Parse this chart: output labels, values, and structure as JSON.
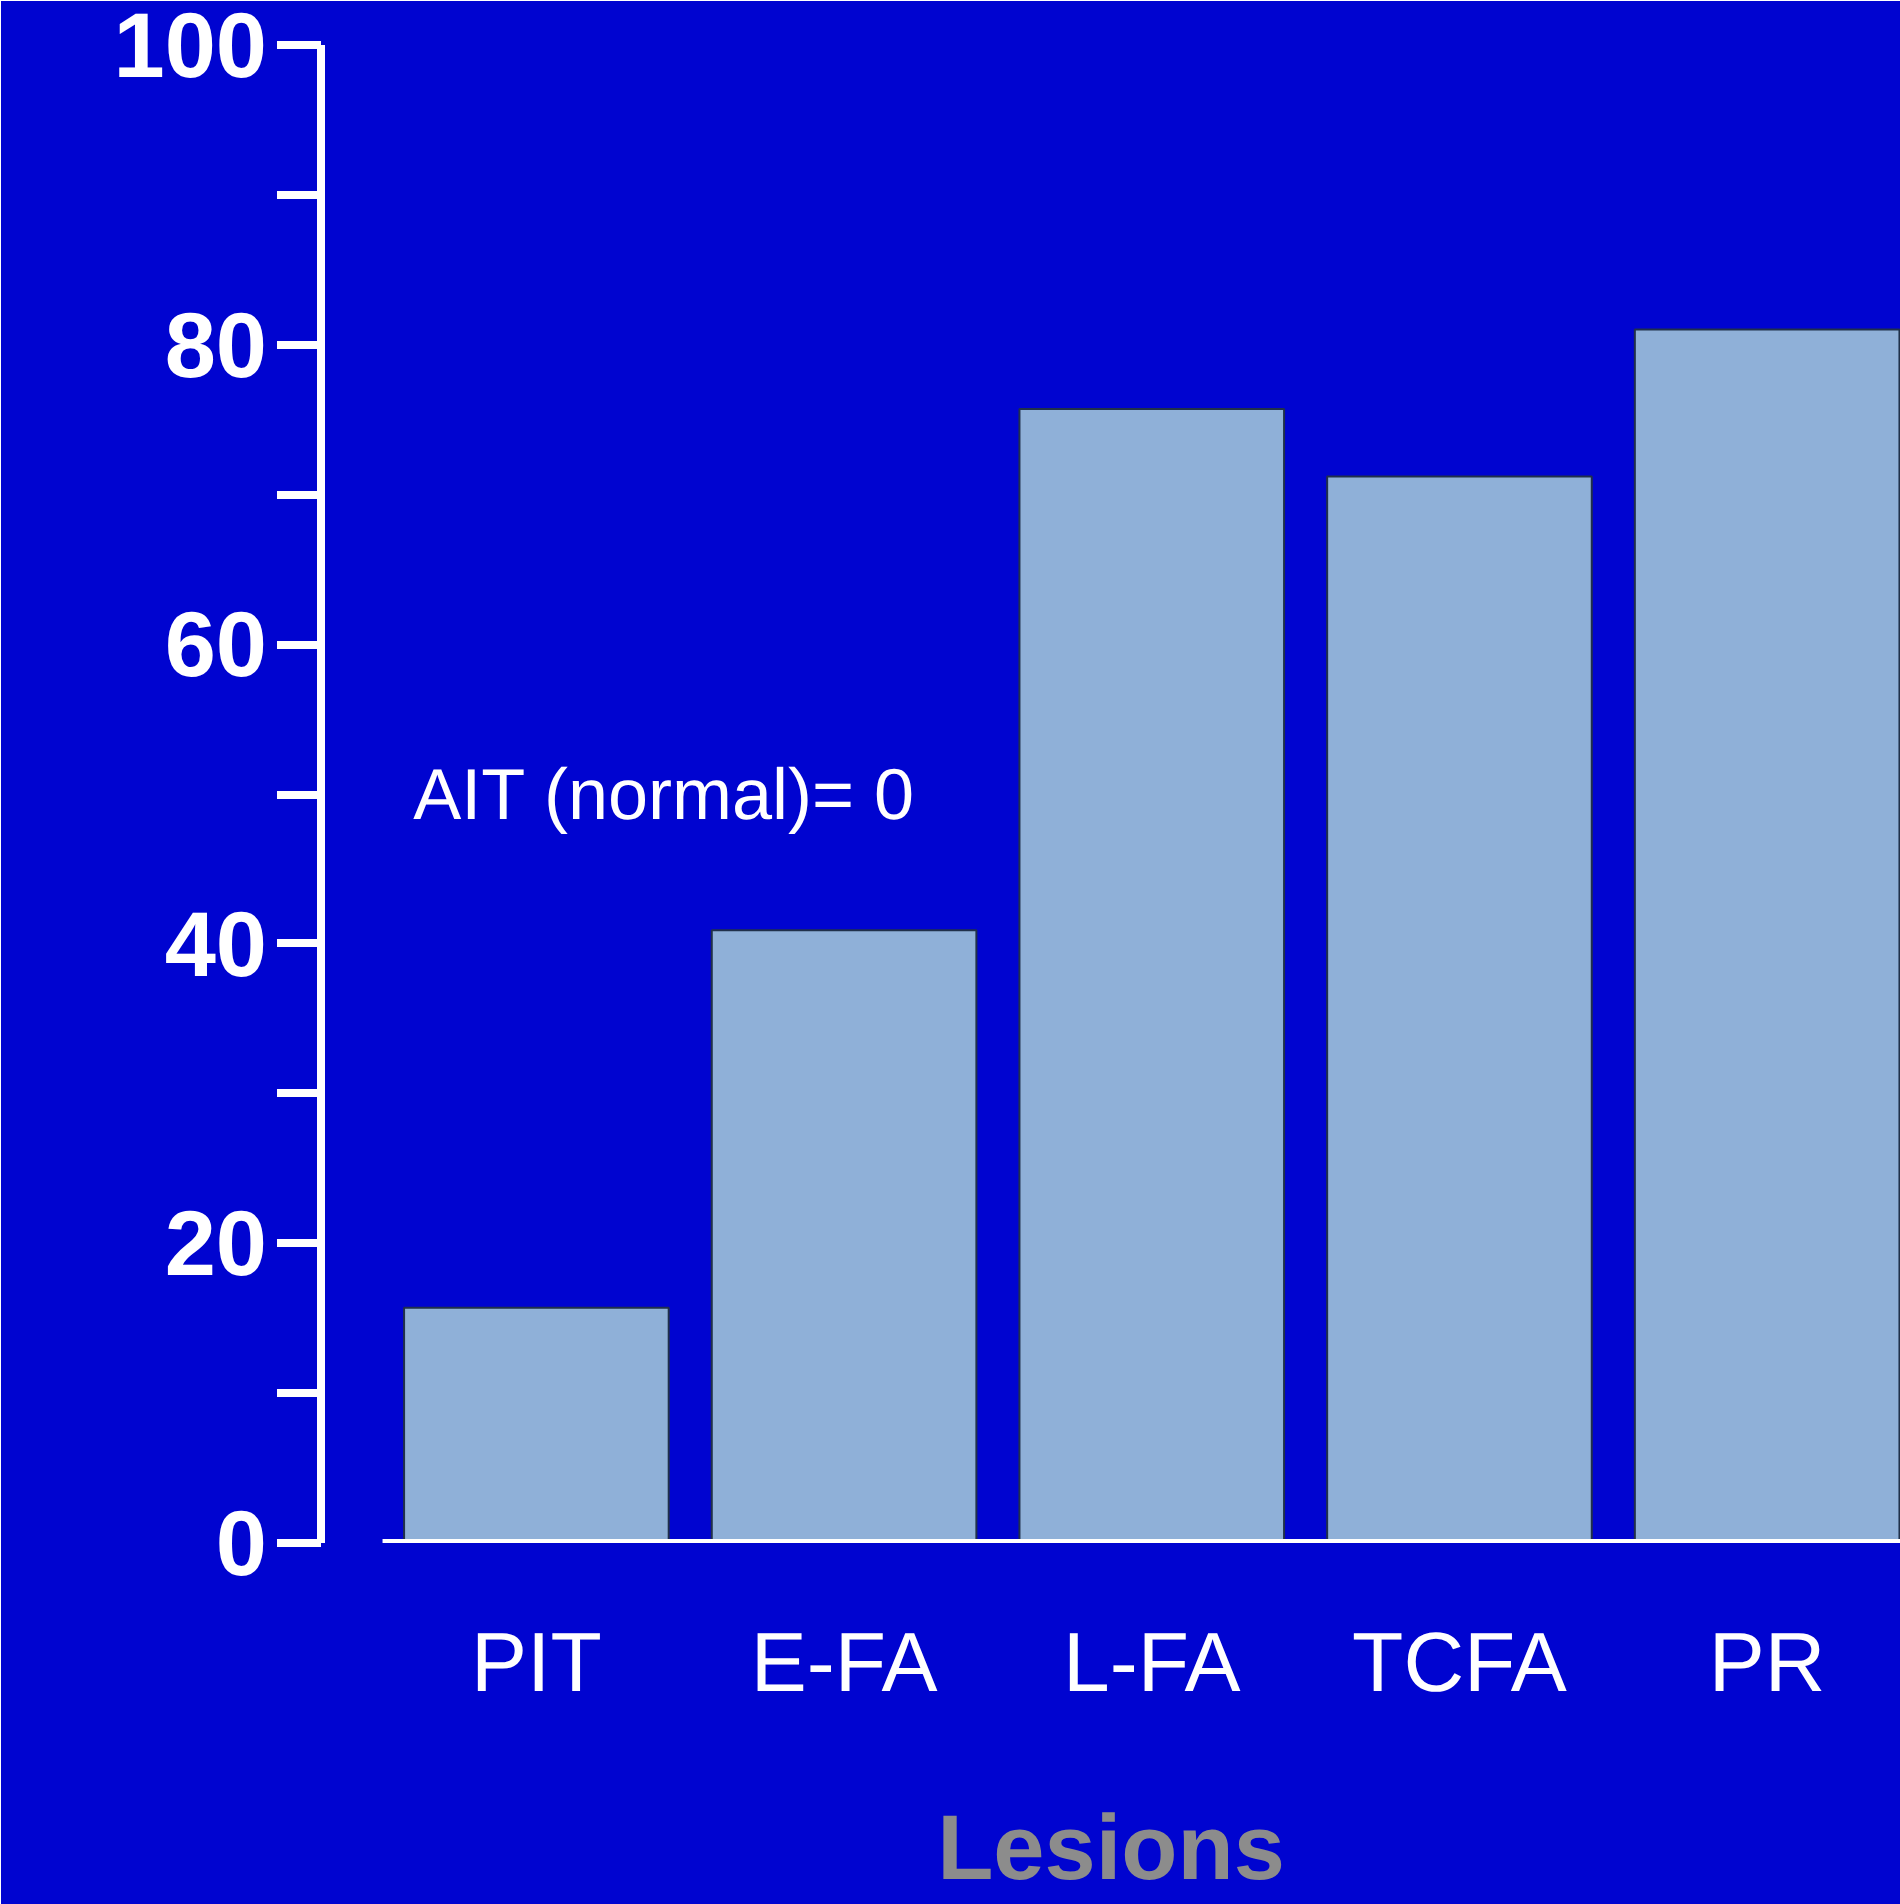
{
  "chart_data": {
    "type": "bar",
    "categories": [
      "PIT",
      "E-FA",
      "L-FA",
      "TCFA",
      "PR"
    ],
    "values": [
      15.7,
      40.9,
      75.7,
      71.2,
      81
    ],
    "color": "#8fb0d8",
    "xlabel": "Lesions",
    "ylim": [
      0,
      100
    ],
    "yticks": [
      0,
      20,
      40,
      60,
      80,
      100
    ],
    "annotations": [
      "AIT (normal)= 0"
    ],
    "grid": false
  }
}
